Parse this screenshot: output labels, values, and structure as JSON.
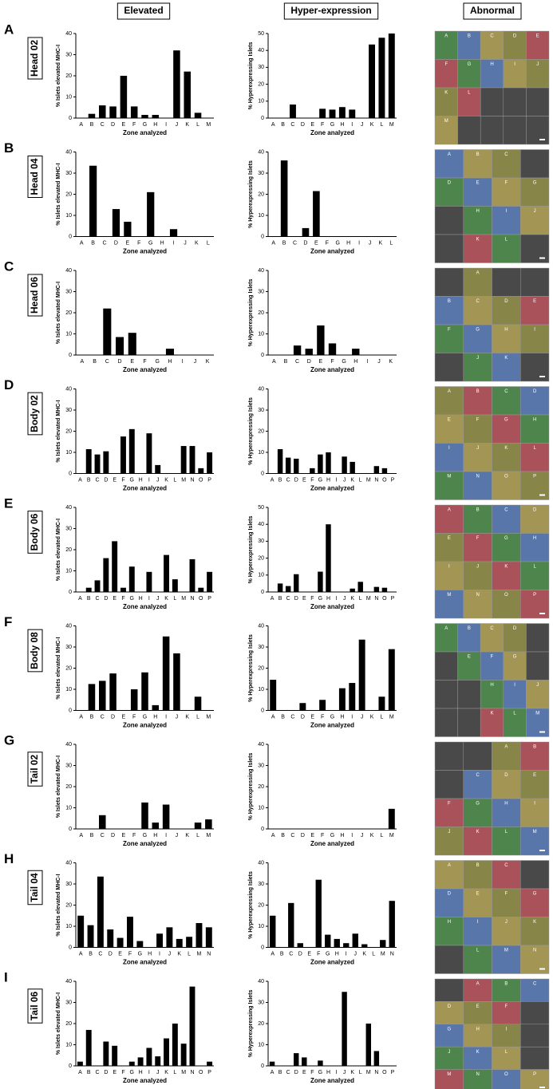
{
  "headers": [
    "Elevated",
    "Hyper-expression",
    "Abnormal"
  ],
  "rows": [
    {
      "letter": "A",
      "sample": "Head 02",
      "zones": [
        [
          "A",
          "B",
          "C",
          "D",
          "E"
        ],
        [
          "F",
          "G",
          "H",
          "I",
          "J"
        ],
        [
          "K",
          "L",
          null,
          null,
          null
        ],
        [
          "M",
          null,
          null,
          null,
          null
        ]
      ]
    },
    {
      "letter": "B",
      "sample": "Head 04",
      "zones": [
        [
          "A",
          "B",
          "C",
          null
        ],
        [
          "D",
          "E",
          "F",
          "G"
        ],
        [
          null,
          "H",
          "I",
          "J"
        ],
        [
          null,
          "K",
          "L",
          null
        ]
      ]
    },
    {
      "letter": "C",
      "sample": "Head 06",
      "zones": [
        [
          null,
          "A",
          null,
          null
        ],
        [
          "B",
          "C",
          "D",
          "E"
        ],
        [
          "F",
          "G",
          "H",
          "I"
        ],
        [
          null,
          "J",
          "K",
          null
        ]
      ]
    },
    {
      "letter": "D",
      "sample": "Body 02",
      "zones": [
        [
          "A",
          "B",
          "C",
          "D"
        ],
        [
          "E",
          "F",
          "G",
          "H"
        ],
        [
          "I",
          "J",
          "K",
          "L"
        ],
        [
          "M",
          "N",
          "O",
          "P"
        ]
      ]
    },
    {
      "letter": "E",
      "sample": "Body 06",
      "zones": [
        [
          "A",
          "B",
          "C",
          "D"
        ],
        [
          "E",
          "F",
          "G",
          "H"
        ],
        [
          "I",
          "J",
          "K",
          "L"
        ],
        [
          "M",
          "N",
          "O",
          "P"
        ]
      ]
    },
    {
      "letter": "F",
      "sample": "Body 08",
      "zones": [
        [
          "A",
          "B",
          "C",
          "D",
          null
        ],
        [
          null,
          "E",
          "F",
          "G",
          null
        ],
        [
          null,
          null,
          "H",
          "I",
          "J"
        ],
        [
          null,
          null,
          "K",
          "L",
          "M"
        ]
      ]
    },
    {
      "letter": "G",
      "sample": "Tail 02",
      "zones": [
        [
          null,
          null,
          "A",
          "B"
        ],
        [
          null,
          "C",
          "D",
          "E"
        ],
        [
          "F",
          "G",
          "H",
          "I"
        ],
        [
          "J",
          "K",
          "L",
          "M"
        ]
      ]
    },
    {
      "letter": "H",
      "sample": "Tail 04",
      "zones": [
        [
          "A",
          "B",
          "C",
          null
        ],
        [
          "D",
          "E",
          "F",
          "G"
        ],
        [
          "H",
          "I",
          "J",
          "K"
        ],
        [
          null,
          "L",
          "M",
          "N"
        ]
      ]
    },
    {
      "letter": "I",
      "sample": "Tail 06",
      "zones": [
        [
          null,
          "A",
          "B",
          "C"
        ],
        [
          "D",
          "E",
          "F",
          null
        ],
        [
          "G",
          "H",
          "I",
          null
        ],
        [
          "J",
          "K",
          "L",
          null
        ],
        [
          "M",
          "N",
          "O",
          "P"
        ]
      ]
    }
  ],
  "chart_data": [
    {
      "type": "bar",
      "y_label": "% Islets elevated MHC-I",
      "x_label": "Zone analyzed",
      "categories": [
        "A",
        "B",
        "C",
        "D",
        "E",
        "F",
        "G",
        "H",
        "I",
        "J",
        "K",
        "L",
        "M"
      ],
      "values": [
        0,
        2,
        6,
        5.5,
        20,
        5.5,
        1.5,
        1.5,
        0,
        32,
        22,
        2.5,
        0
      ],
      "ylim": [
        0,
        40
      ],
      "yticks": [
        0,
        10,
        20,
        30,
        40
      ],
      "color": "#000000"
    },
    {
      "type": "bar",
      "y_label": "% Hyperexpressing Islets",
      "x_label": "Zone analyzed",
      "categories": [
        "A",
        "B",
        "C",
        "D",
        "E",
        "F",
        "G",
        "H",
        "I",
        "J",
        "K",
        "L",
        "M"
      ],
      "values": [
        0,
        0,
        8,
        0,
        0,
        5.5,
        5,
        6.5,
        5,
        0,
        43.5,
        47.5,
        50
      ],
      "ylim": [
        0,
        50
      ],
      "yticks": [
        0,
        10,
        20,
        30,
        40,
        50
      ],
      "color": "#000000"
    },
    {
      "type": "bar",
      "y_label": "% Islets elevated MHC-I",
      "x_label": "Zone analyzed",
      "categories": [
        "A",
        "B",
        "C",
        "D",
        "E",
        "F",
        "G",
        "H",
        "I",
        "J",
        "K",
        "L"
      ],
      "values": [
        0,
        33.5,
        0,
        13,
        7,
        0,
        21,
        0,
        3.5,
        0,
        0,
        0
      ],
      "ylim": [
        0,
        40
      ],
      "yticks": [
        0,
        10,
        20,
        30,
        40
      ],
      "color": "#000000"
    },
    {
      "type": "bar",
      "y_label": "% Hyperexpressing Islets",
      "x_label": "Zone analyzed",
      "categories": [
        "A",
        "B",
        "C",
        "D",
        "E",
        "F",
        "G",
        "H",
        "I",
        "J",
        "K",
        "L"
      ],
      "values": [
        0,
        36,
        0,
        4,
        21.5,
        0,
        0,
        0,
        0,
        0,
        0,
        0
      ],
      "ylim": [
        0,
        40
      ],
      "yticks": [
        0,
        10,
        20,
        30,
        40
      ],
      "color": "#000000"
    },
    {
      "type": "bar",
      "y_label": "% Islets elevated MHC-I",
      "x_label": "Zone analyzed",
      "categories": [
        "A",
        "B",
        "C",
        "D",
        "E",
        "F",
        "G",
        "H",
        "I",
        "J",
        "K"
      ],
      "values": [
        0,
        0,
        22,
        8.5,
        10.5,
        0,
        0,
        3,
        0,
        0,
        0
      ],
      "ylim": [
        0,
        40
      ],
      "yticks": [
        0,
        10,
        20,
        30,
        40
      ],
      "color": "#000000"
    },
    {
      "type": "bar",
      "y_label": "% Hyperexpressing Islets",
      "x_label": "Zone analyzed",
      "categories": [
        "A",
        "B",
        "C",
        "D",
        "E",
        "F",
        "G",
        "H",
        "I",
        "J",
        "K"
      ],
      "values": [
        0,
        0,
        4.5,
        3,
        14,
        5.5,
        0,
        3,
        0,
        0,
        0
      ],
      "ylim": [
        0,
        40
      ],
      "yticks": [
        0,
        10,
        20,
        30,
        40
      ],
      "color": "#000000"
    },
    {
      "type": "bar",
      "y_label": "% Islets elevated MHC-I",
      "x_label": "Zone analyzed",
      "categories": [
        "A",
        "B",
        "C",
        "D",
        "E",
        "F",
        "G",
        "H",
        "I",
        "J",
        "K",
        "L",
        "M",
        "N",
        "O",
        "P"
      ],
      "values": [
        0,
        11.5,
        9,
        10.5,
        0,
        17.5,
        21,
        0,
        19,
        4,
        0,
        0,
        13,
        13,
        2.5,
        10
      ],
      "ylim": [
        0,
        40
      ],
      "yticks": [
        0,
        10,
        20,
        30,
        40
      ],
      "color": "#000000"
    },
    {
      "type": "bar",
      "y_label": "% Hyperexpressing Islets",
      "x_label": "Zone analyzed",
      "categories": [
        "A",
        "B",
        "C",
        "D",
        "E",
        "F",
        "G",
        "H",
        "I",
        "J",
        "K",
        "L",
        "M",
        "N",
        "O",
        "P"
      ],
      "values": [
        0,
        11.5,
        7.5,
        7,
        0,
        2.5,
        9,
        10,
        0,
        8,
        5.5,
        0,
        0,
        3.5,
        2.5,
        0
      ],
      "ylim": [
        0,
        40
      ],
      "yticks": [
        0,
        10,
        20,
        30,
        40
      ],
      "color": "#000000"
    },
    {
      "type": "bar",
      "y_label": "% Islets elevated MHC-I",
      "x_label": "Zone analyzed",
      "categories": [
        "A",
        "B",
        "C",
        "D",
        "E",
        "F",
        "G",
        "H",
        "I",
        "J",
        "K",
        "L",
        "M",
        "N",
        "O",
        "P"
      ],
      "values": [
        0,
        2,
        5.5,
        16,
        24,
        2,
        12,
        0,
        9.5,
        0,
        17.5,
        6,
        0,
        15.5,
        2,
        9.5
      ],
      "ylim": [
        0,
        40
      ],
      "yticks": [
        0,
        10,
        20,
        30,
        40
      ],
      "color": "#000000"
    },
    {
      "type": "bar",
      "y_label": "% Hyperexpressing Islets",
      "x_label": "Zone analyzed",
      "categories": [
        "A",
        "B",
        "C",
        "D",
        "E",
        "F",
        "G",
        "H",
        "I",
        "J",
        "K",
        "L",
        "M",
        "N",
        "O",
        "P"
      ],
      "values": [
        0,
        5,
        3.5,
        10.5,
        0,
        0,
        12,
        40,
        0,
        0,
        2,
        6,
        0,
        3,
        2.5,
        0
      ],
      "ylim": [
        0,
        50
      ],
      "yticks": [
        0,
        10,
        20,
        30,
        40,
        50
      ],
      "color": "#000000"
    },
    {
      "type": "bar",
      "y_label": "% Islets elevated MHC-I",
      "x_label": "Zone analyzed",
      "categories": [
        "A",
        "B",
        "C",
        "D",
        "E",
        "F",
        "G",
        "H",
        "I",
        "J",
        "K",
        "L",
        "M"
      ],
      "values": [
        0,
        12.5,
        14,
        17.5,
        0,
        10,
        18,
        2.5,
        35,
        27,
        0,
        6.5,
        0
      ],
      "ylim": [
        0,
        40
      ],
      "yticks": [
        0,
        10,
        20,
        30,
        40
      ],
      "color": "#000000"
    },
    {
      "type": "bar",
      "y_label": "% Hyperexpressing Islets",
      "x_label": "Zone analyzed",
      "categories": [
        "A",
        "B",
        "C",
        "D",
        "E",
        "F",
        "G",
        "H",
        "I",
        "J",
        "K",
        "L",
        "M"
      ],
      "values": [
        14.5,
        0,
        0,
        3.5,
        0,
        5,
        0,
        10.5,
        13,
        33.5,
        0,
        6.5,
        29
      ],
      "ylim": [
        0,
        40
      ],
      "yticks": [
        0,
        10,
        20,
        30,
        40
      ],
      "color": "#000000"
    },
    {
      "type": "bar",
      "y_label": "% Islets elevated MHC-I",
      "x_label": "Zone analyzed",
      "categories": [
        "A",
        "B",
        "C",
        "D",
        "E",
        "F",
        "G",
        "H",
        "I",
        "J",
        "K",
        "L",
        "M"
      ],
      "values": [
        0,
        0,
        6.5,
        0,
        0,
        0,
        12.5,
        3,
        11.5,
        0,
        0,
        3,
        4.5
      ],
      "ylim": [
        0,
        40
      ],
      "yticks": [
        0,
        10,
        20,
        30,
        40
      ],
      "color": "#000000"
    },
    {
      "type": "bar",
      "y_label": "% Hyperexpressing Islets",
      "x_label": "Zone analyzed",
      "categories": [
        "A",
        "B",
        "C",
        "D",
        "E",
        "F",
        "G",
        "H",
        "I",
        "J",
        "K",
        "L",
        "M"
      ],
      "values": [
        0,
        0,
        0,
        0,
        0,
        0,
        0,
        0,
        0,
        0,
        0,
        0,
        9.5
      ],
      "ylim": [
        0,
        40
      ],
      "yticks": [
        0,
        10,
        20,
        30,
        40
      ],
      "color": "#000000"
    },
    {
      "type": "bar",
      "y_label": "% Islets elevated MHC-I",
      "x_label": "Zone analyzed",
      "categories": [
        "A",
        "B",
        "C",
        "D",
        "E",
        "F",
        "G",
        "H",
        "I",
        "J",
        "K",
        "L",
        "M",
        "N"
      ],
      "values": [
        15,
        10.5,
        33.5,
        8.5,
        4.5,
        14.5,
        3,
        0,
        6.5,
        9.5,
        4,
        5,
        11.5,
        9.5
      ],
      "ylim": [
        0,
        40
      ],
      "yticks": [
        0,
        10,
        20,
        30,
        40
      ],
      "color": "#000000"
    },
    {
      "type": "bar",
      "y_label": "% Hyperexpressing Islets",
      "x_label": "Zone analyzed",
      "categories": [
        "A",
        "B",
        "C",
        "D",
        "E",
        "F",
        "G",
        "H",
        "I",
        "J",
        "K",
        "L",
        "M",
        "N"
      ],
      "values": [
        15,
        0,
        21,
        2,
        0,
        32,
        6,
        4,
        2,
        6.5,
        1.5,
        0,
        3.5,
        22
      ],
      "ylim": [
        0,
        40
      ],
      "yticks": [
        0,
        10,
        20,
        30,
        40
      ],
      "color": "#000000"
    },
    {
      "type": "bar",
      "y_label": "% Islets elevated MHC-I",
      "x_label": "Zone analyzed",
      "categories": [
        "A",
        "B",
        "C",
        "D",
        "E",
        "F",
        "G",
        "H",
        "I",
        "J",
        "K",
        "L",
        "M",
        "N",
        "O",
        "P"
      ],
      "values": [
        2,
        17,
        0,
        11.5,
        9.5,
        0,
        2,
        4,
        8.5,
        4.5,
        13,
        20,
        10.5,
        37.5,
        0,
        2
      ],
      "ylim": [
        0,
        40
      ],
      "yticks": [
        0,
        10,
        20,
        30,
        40
      ],
      "color": "#000000"
    },
    {
      "type": "bar",
      "y_label": "% Hyperexpressing Islets",
      "x_label": "Zone analyzed",
      "categories": [
        "A",
        "B",
        "C",
        "D",
        "E",
        "F",
        "G",
        "H",
        "I",
        "J",
        "K",
        "L",
        "M",
        "N",
        "O",
        "P"
      ],
      "values": [
        2,
        0,
        0,
        6,
        4,
        0,
        2.5,
        0,
        0,
        35,
        0,
        0,
        20,
        7,
        0,
        0
      ],
      "ylim": [
        0,
        40
      ],
      "yticks": [
        0,
        10,
        20,
        30,
        40
      ],
      "color": "#000000"
    }
  ]
}
